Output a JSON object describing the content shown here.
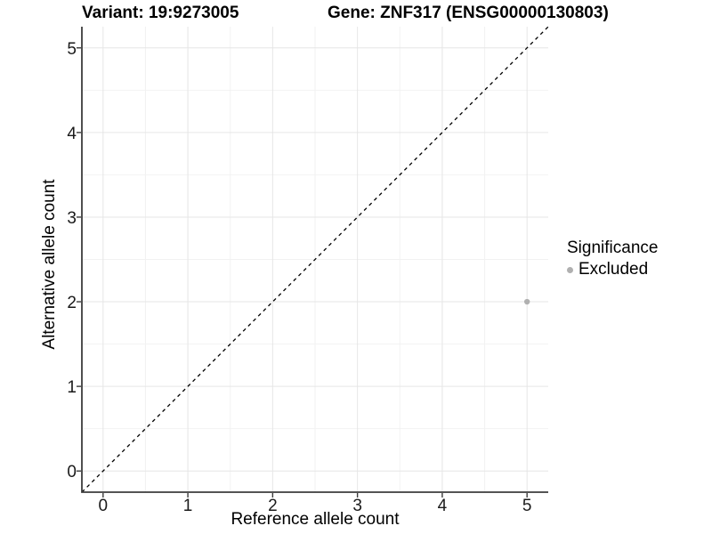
{
  "header": {
    "variant_title": "Variant: 19:9273005",
    "gene_title": "Gene: ZNF317 (ENSG00000130803)"
  },
  "legend": {
    "title": "Significance",
    "entries": [
      {
        "label": "Excluded",
        "color": "#b0b0b0"
      }
    ]
  },
  "chart_data": {
    "type": "scatter",
    "title": "Variant: 19:9273005 | Gene: ZNF317 (ENSG00000130803)",
    "xlabel": "Reference allele count",
    "ylabel": "Alternative allele count",
    "xlim": [
      -0.25,
      5.25
    ],
    "ylim": [
      -0.25,
      5.25
    ],
    "x_ticks": [
      0,
      1,
      2,
      3,
      4,
      5
    ],
    "y_ticks": [
      0,
      1,
      2,
      3,
      4,
      5
    ],
    "x_minor_ticks": [
      0.5,
      1.5,
      2.5,
      3.5,
      4.5
    ],
    "y_minor_ticks": [
      0.5,
      1.5,
      2.5,
      3.5,
      4.5
    ],
    "grid": true,
    "legend_position": "right",
    "legend_title": "Significance",
    "series": [
      {
        "name": "Excluded",
        "color": "#b0b0b0",
        "point_radius": 3.2,
        "points": [
          {
            "x": 5,
            "y": 2
          }
        ]
      }
    ],
    "reference_line": {
      "kind": "identity y=x",
      "style": "dashed",
      "color": "#000000"
    }
  },
  "colors": {
    "background": "#ffffff",
    "grid_major": "#e6e6e6",
    "grid_minor": "#f2f2f2",
    "axis_line": "#3c3c3c",
    "tick_label": "#1a1a1a",
    "point": "#b0b0b0",
    "reference_line": "#000000"
  }
}
